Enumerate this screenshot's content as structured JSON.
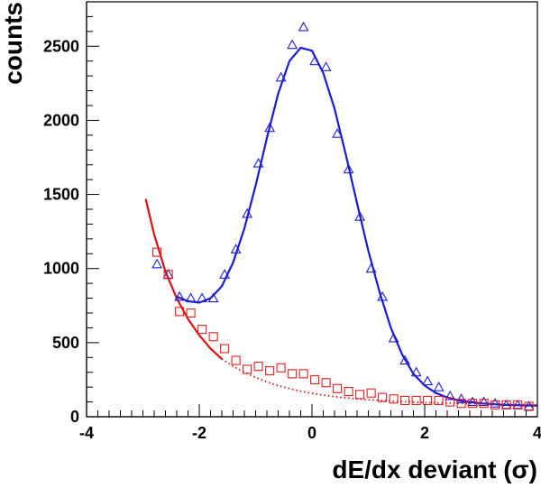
{
  "chart_data": {
    "type": "scatter",
    "title": "",
    "xlabel": "dE/dx deviant (σ)",
    "ylabel": "counts",
    "xlim": [
      -4,
      4
    ],
    "ylim": [
      0,
      2800
    ],
    "x_ticks": [
      -4,
      -2,
      0,
      2,
      4
    ],
    "y_ticks": [
      0,
      500,
      1000,
      1500,
      2000,
      2500
    ],
    "grid": false,
    "legend": "none",
    "series": [
      {
        "marker": "triangle-open",
        "color": "#2020d0",
        "x": [
          -2.75,
          -2.55,
          -2.35,
          -2.15,
          -1.95,
          -1.75,
          -1.55,
          -1.35,
          -1.15,
          -0.95,
          -0.75,
          -0.55,
          -0.35,
          -0.15,
          0.05,
          0.25,
          0.45,
          0.65,
          0.85,
          1.05,
          1.25,
          1.45,
          1.65,
          1.85,
          2.05,
          2.25,
          2.45,
          2.65,
          2.85,
          3.05,
          3.25,
          3.45,
          3.65,
          3.85
        ],
        "y": [
          1030,
          960,
          810,
          800,
          800,
          800,
          960,
          1130,
          1370,
          1710,
          1950,
          2290,
          2510,
          2630,
          2400,
          2360,
          1910,
          1670,
          1350,
          1000,
          810,
          530,
          380,
          300,
          240,
          200,
          140,
          120,
          100,
          100,
          90,
          80,
          80,
          70
        ]
      },
      {
        "marker": "square-open",
        "color": "#e02020",
        "x": [
          -2.75,
          -2.55,
          -2.35,
          -2.15,
          -1.95,
          -1.75,
          -1.55,
          -1.35,
          -1.15,
          -0.95,
          -0.75,
          -0.55,
          -0.35,
          -0.15,
          0.05,
          0.25,
          0.45,
          0.65,
          0.85,
          1.05,
          1.25,
          1.45,
          1.65,
          1.85,
          2.05,
          2.25,
          2.45,
          2.65,
          2.85,
          3.05,
          3.25,
          3.45,
          3.65,
          3.85
        ],
        "y": [
          1110,
          960,
          710,
          700,
          590,
          540,
          460,
          380,
          320,
          340,
          310,
          330,
          290,
          290,
          250,
          230,
          190,
          170,
          150,
          160,
          130,
          120,
          110,
          110,
          110,
          110,
          100,
          90,
          90,
          90,
          80,
          80,
          80,
          70
        ]
      }
    ],
    "fits": [
      {
        "color": "#1a1ad6",
        "style": "solid",
        "x": [
          -2.4,
          -2.2,
          -2.0,
          -1.8,
          -1.6,
          -1.4,
          -1.2,
          -1.0,
          -0.8,
          -0.6,
          -0.4,
          -0.2,
          0.0,
          0.2,
          0.4,
          0.6,
          0.8,
          1.0,
          1.2,
          1.4,
          1.6,
          1.8,
          2.0,
          2.2,
          2.4,
          2.6,
          2.8,
          3.0,
          3.2,
          3.4,
          3.6,
          3.8,
          4.0
        ],
        "y": [
          810,
          780,
          770,
          800,
          880,
          1040,
          1270,
          1560,
          1880,
          2180,
          2400,
          2490,
          2470,
          2320,
          2080,
          1770,
          1440,
          1120,
          840,
          600,
          420,
          290,
          210,
          160,
          130,
          110,
          100,
          90,
          85,
          80,
          78,
          76,
          75
        ]
      },
      {
        "color": "#e01010",
        "style": "solid",
        "x": [
          -2.95,
          -2.8,
          -2.6,
          -2.4,
          -2.2,
          -2.0,
          -1.8,
          -1.6
        ],
        "y": [
          1470,
          1230,
          980,
          800,
          660,
          550,
          460,
          390
        ]
      },
      {
        "color": "#e01010",
        "style": "dotted",
        "x": [
          -1.6,
          -1.4,
          -1.2,
          -1.0,
          -0.8,
          -0.6,
          -0.4,
          -0.2,
          0.0,
          0.2,
          0.4,
          0.6,
          0.8,
          1.0,
          1.2,
          1.4,
          1.6,
          1.8,
          2.0,
          2.4,
          2.8,
          3.2,
          3.6,
          4.0
        ],
        "y": [
          390,
          340,
          300,
          265,
          235,
          210,
          190,
          172,
          158,
          146,
          136,
          128,
          121,
          115,
          110,
          106,
          102,
          99,
          96,
          92,
          88,
          85,
          83,
          81
        ]
      }
    ]
  }
}
